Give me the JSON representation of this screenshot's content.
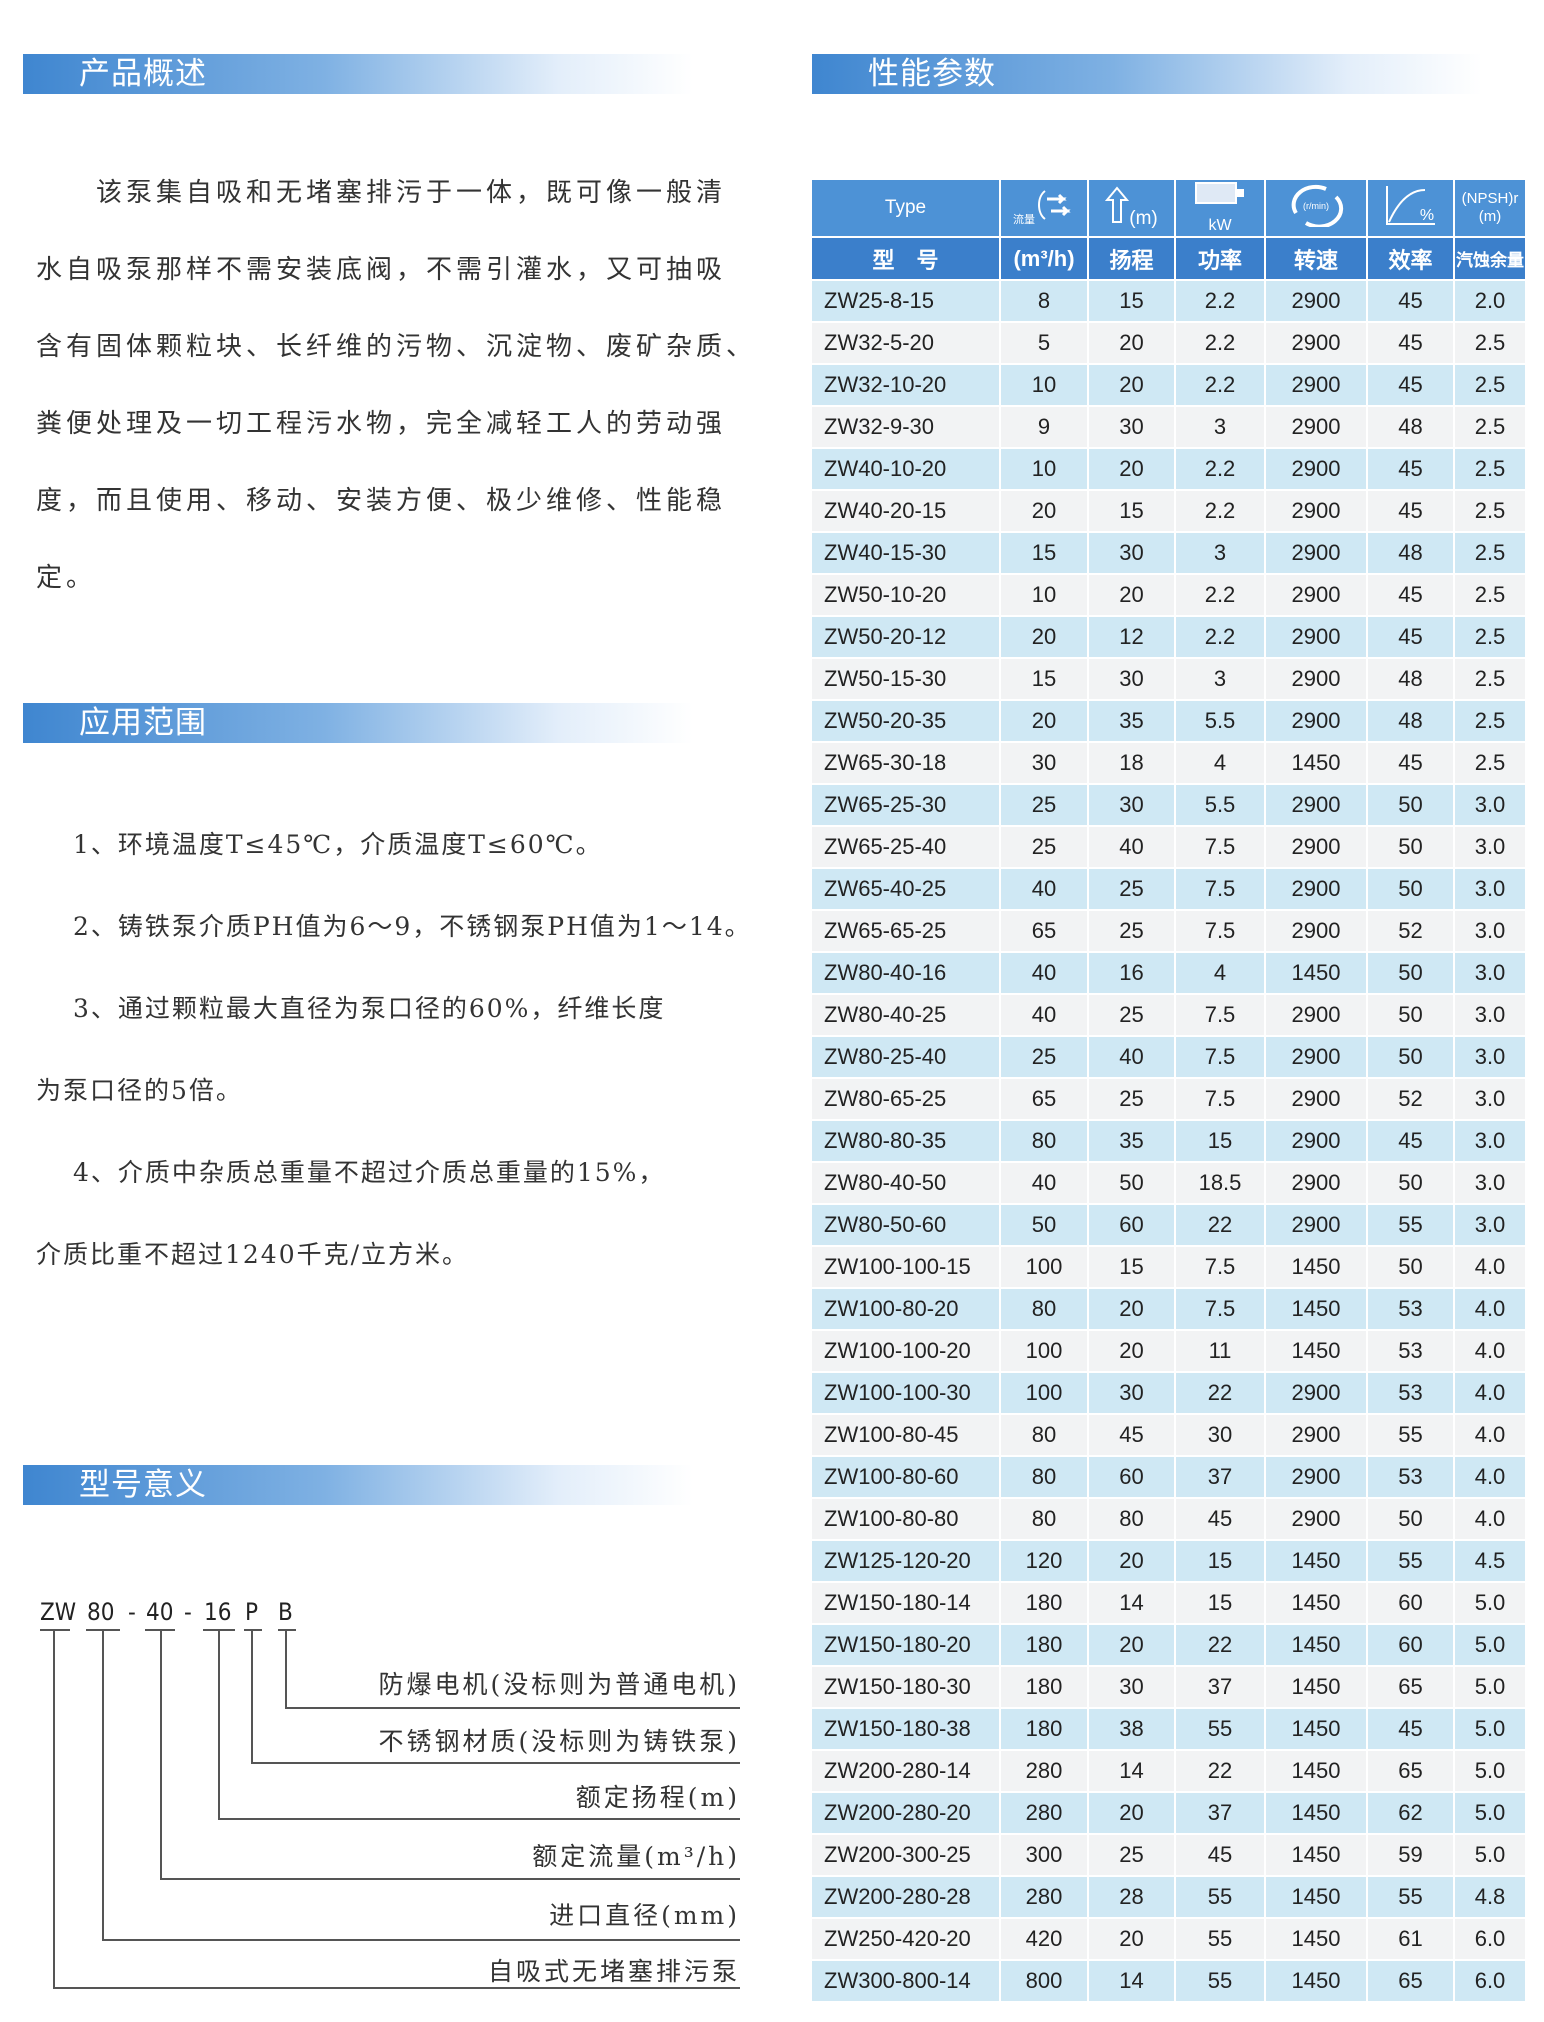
{
  "sections": {
    "overview": {
      "title": "产品概述",
      "lines": [
        "　　该泵集自吸和无堵塞排污于一体，既可像一般清",
        "水自吸泵那样不需安装底阀，不需引灌水，又可抽吸",
        "含有固体颗粒块、长纤维的污物、沉淀物、废矿杂质、",
        "粪便处理及一切工程污水物，完全减轻工人的劳动强",
        "度，而且使用、移动、安装方便、极少维修、性能稳",
        "定。"
      ]
    },
    "application": {
      "title": "应用范围",
      "lines": [
        "　 1、环境温度T≤45℃，介质温度T≤60℃。",
        "　 2、铸铁泵介质PH值为6～9，不锈钢泵PH值为1～14。",
        "　 3、通过颗粒最大直径为泵口径的60%，纤维长度",
        "为泵口径的5倍。",
        "　 4、介质中杂质总重量不超过介质总重量的15%，",
        "介质比重不超过1240千克/立方米。"
      ]
    },
    "model": {
      "title": "型号意义",
      "code": [
        "ZW",
        "80",
        "-",
        "40",
        "-",
        "16",
        "P",
        "B"
      ],
      "labels": [
        "防爆电机(没标则为普通电机)",
        "不锈钢材质(没标则为铸铁泵)",
        "额定扬程(m)",
        "额定流量(m³/h)",
        "进口直径(mm)",
        "自吸式无堵塞排污泵"
      ]
    },
    "performance": {
      "title": "性能参数"
    }
  },
  "table": {
    "header_top": {
      "type": "Type",
      "flow_icon_text": "流量",
      "head_unit": "(m)",
      "power_unit": "kW",
      "speed_unit": "(r/min)",
      "eff_unit": "%",
      "npsh": "(NPSH)r",
      "npsh_unit": "(m)"
    },
    "header_bottom": [
      "型　号",
      "(m³/h)",
      "扬程",
      "功率",
      "转速",
      "效率",
      "汽蚀余量"
    ],
    "icons": [
      "flow-icon",
      "head-arrow-icon",
      "motor-icon",
      "rotation-icon",
      "efficiency-curve-icon"
    ],
    "rows": [
      [
        "ZW25-8-15",
        "8",
        "15",
        "2.2",
        "2900",
        "45",
        "2.0"
      ],
      [
        "ZW32-5-20",
        "5",
        "20",
        "2.2",
        "2900",
        "45",
        "2.5"
      ],
      [
        "ZW32-10-20",
        "10",
        "20",
        "2.2",
        "2900",
        "45",
        "2.5"
      ],
      [
        "ZW32-9-30",
        "9",
        "30",
        "3",
        "2900",
        "48",
        "2.5"
      ],
      [
        "ZW40-10-20",
        "10",
        "20",
        "2.2",
        "2900",
        "45",
        "2.5"
      ],
      [
        "ZW40-20-15",
        "20",
        "15",
        "2.2",
        "2900",
        "45",
        "2.5"
      ],
      [
        "ZW40-15-30",
        "15",
        "30",
        "3",
        "2900",
        "48",
        "2.5"
      ],
      [
        "ZW50-10-20",
        "10",
        "20",
        "2.2",
        "2900",
        "45",
        "2.5"
      ],
      [
        "ZW50-20-12",
        "20",
        "12",
        "2.2",
        "2900",
        "45",
        "2.5"
      ],
      [
        "ZW50-15-30",
        "15",
        "30",
        "3",
        "2900",
        "48",
        "2.5"
      ],
      [
        "ZW50-20-35",
        "20",
        "35",
        "5.5",
        "2900",
        "48",
        "2.5"
      ],
      [
        "ZW65-30-18",
        "30",
        "18",
        "4",
        "1450",
        "45",
        "2.5"
      ],
      [
        "ZW65-25-30",
        "25",
        "30",
        "5.5",
        "2900",
        "50",
        "3.0"
      ],
      [
        "ZW65-25-40",
        "25",
        "40",
        "7.5",
        "2900",
        "50",
        "3.0"
      ],
      [
        "ZW65-40-25",
        "40",
        "25",
        "7.5",
        "2900",
        "50",
        "3.0"
      ],
      [
        "ZW65-65-25",
        "65",
        "25",
        "7.5",
        "2900",
        "52",
        "3.0"
      ],
      [
        "ZW80-40-16",
        "40",
        "16",
        "4",
        "1450",
        "50",
        "3.0"
      ],
      [
        "ZW80-40-25",
        "40",
        "25",
        "7.5",
        "2900",
        "50",
        "3.0"
      ],
      [
        "ZW80-25-40",
        "25",
        "40",
        "7.5",
        "2900",
        "50",
        "3.0"
      ],
      [
        "ZW80-65-25",
        "65",
        "25",
        "7.5",
        "2900",
        "52",
        "3.0"
      ],
      [
        "ZW80-80-35",
        "80",
        "35",
        "15",
        "2900",
        "45",
        "3.0"
      ],
      [
        "ZW80-40-50",
        "40",
        "50",
        "18.5",
        "2900",
        "50",
        "3.0"
      ],
      [
        "ZW80-50-60",
        "50",
        "60",
        "22",
        "2900",
        "55",
        "3.0"
      ],
      [
        "ZW100-100-15",
        "100",
        "15",
        "7.5",
        "1450",
        "50",
        "4.0"
      ],
      [
        "ZW100-80-20",
        "80",
        "20",
        "7.5",
        "1450",
        "53",
        "4.0"
      ],
      [
        "ZW100-100-20",
        "100",
        "20",
        "11",
        "1450",
        "53",
        "4.0"
      ],
      [
        "ZW100-100-30",
        "100",
        "30",
        "22",
        "2900",
        "53",
        "4.0"
      ],
      [
        "ZW100-80-45",
        "80",
        "45",
        "30",
        "2900",
        "55",
        "4.0"
      ],
      [
        "ZW100-80-60",
        "80",
        "60",
        "37",
        "2900",
        "53",
        "4.0"
      ],
      [
        "ZW100-80-80",
        "80",
        "80",
        "45",
        "2900",
        "50",
        "4.0"
      ],
      [
        "ZW125-120-20",
        "120",
        "20",
        "15",
        "1450",
        "55",
        "4.5"
      ],
      [
        "ZW150-180-14",
        "180",
        "14",
        "15",
        "1450",
        "60",
        "5.0"
      ],
      [
        "ZW150-180-20",
        "180",
        "20",
        "22",
        "1450",
        "60",
        "5.0"
      ],
      [
        "ZW150-180-30",
        "180",
        "30",
        "37",
        "1450",
        "65",
        "5.0"
      ],
      [
        "ZW150-180-38",
        "180",
        "38",
        "55",
        "1450",
        "45",
        "5.0"
      ],
      [
        "ZW200-280-14",
        "280",
        "14",
        "22",
        "1450",
        "65",
        "5.0"
      ],
      [
        "ZW200-280-20",
        "280",
        "20",
        "37",
        "1450",
        "62",
        "5.0"
      ],
      [
        "ZW200-300-25",
        "300",
        "25",
        "45",
        "1450",
        "59",
        "5.0"
      ],
      [
        "ZW200-280-28",
        "280",
        "28",
        "55",
        "1450",
        "55",
        "4.8"
      ],
      [
        "ZW250-420-20",
        "420",
        "20",
        "55",
        "1450",
        "61",
        "6.0"
      ],
      [
        "ZW300-800-14",
        "800",
        "14",
        "55",
        "1450",
        "65",
        "6.0"
      ]
    ]
  },
  "colors": {
    "header": "#4d92d6",
    "header_dark": "#3b7fcb",
    "row_alt": "#cfe8f4",
    "row": "#f2f3f4"
  }
}
